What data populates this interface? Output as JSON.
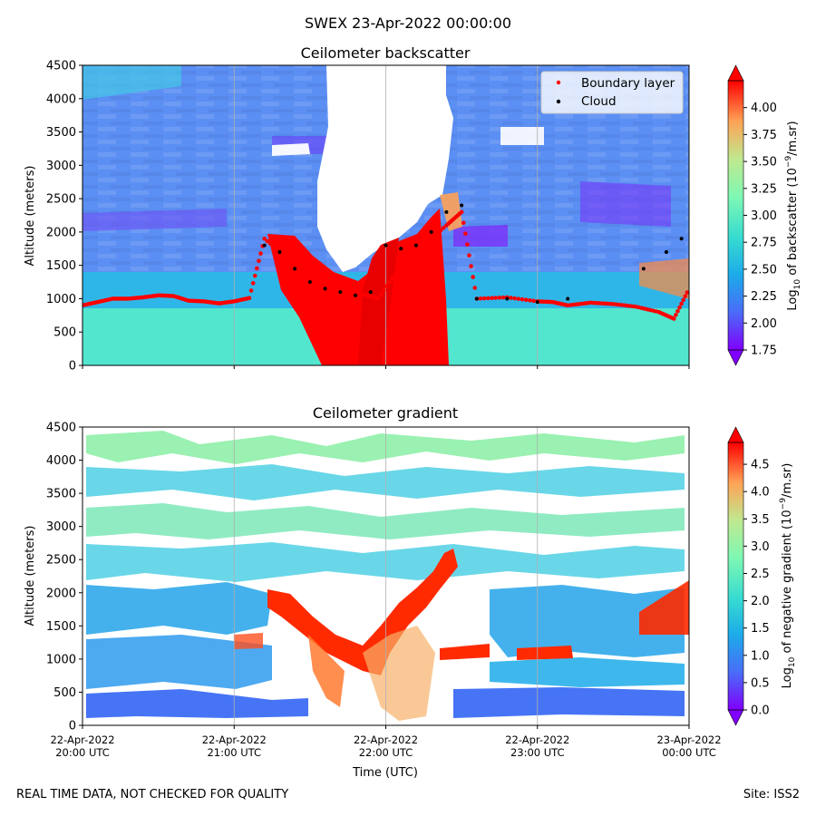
{
  "figure": {
    "suptitle": "SWEX 23-Apr-2022 00:00:00",
    "footer_left": "REAL TIME DATA, NOT CHECKED FOR QUALITY",
    "footer_right": "Site: ISS2"
  },
  "chart_data": [
    {
      "type": "heatmap",
      "title": "Ceilometer backscatter",
      "xlabel": "",
      "ylabel": "Altitude (meters)",
      "ylim": [
        0,
        4500
      ],
      "yticks": [
        0,
        500,
        1000,
        1500,
        2000,
        2500,
        3000,
        3500,
        4000,
        4500
      ],
      "xlim_hours": [
        0,
        4
      ],
      "xtick_labels": [
        "",
        "",
        "",
        "",
        ""
      ],
      "colorbar": {
        "label_prefix": "Log",
        "label_sub": "10",
        "label_suffix": " of backscatter (10",
        "label_sup": "−9",
        "label_end": "/m.sr)",
        "range": [
          1.75,
          4.25
        ],
        "ticks": [
          "1.75",
          "2.00",
          "2.25",
          "2.50",
          "2.75",
          "3.00",
          "3.25",
          "3.50",
          "3.75",
          "4.00"
        ],
        "extend": "both"
      },
      "legend": {
        "placement": "top-right",
        "entries": [
          {
            "label": "Boundary layer",
            "color": "#ff0000"
          },
          {
            "label": "Cloud",
            "color": "#000000"
          }
        ]
      },
      "boundary_layer": [
        [
          0.0,
          900
        ],
        [
          0.1,
          950
        ],
        [
          0.2,
          1000
        ],
        [
          0.3,
          1000
        ],
        [
          0.4,
          1020
        ],
        [
          0.5,
          1050
        ],
        [
          0.6,
          1040
        ],
        [
          0.7,
          970
        ],
        [
          0.8,
          960
        ],
        [
          0.9,
          930
        ],
        [
          1.0,
          960
        ],
        [
          1.1,
          1010
        ],
        [
          1.2,
          1900
        ],
        [
          1.35,
          1600
        ],
        [
          1.5,
          1400
        ],
        [
          1.65,
          1250
        ],
        [
          1.8,
          1100
        ],
        [
          1.95,
          1000
        ],
        [
          2.1,
          1500
        ],
        [
          2.25,
          1800
        ],
        [
          2.4,
          2100
        ],
        [
          2.5,
          2300
        ],
        [
          2.6,
          1000
        ],
        [
          2.8,
          1020
        ],
        [
          3.0,
          960
        ],
        [
          3.1,
          950
        ],
        [
          3.2,
          900
        ],
        [
          3.35,
          940
        ],
        [
          3.5,
          920
        ],
        [
          3.65,
          880
        ],
        [
          3.8,
          800
        ],
        [
          3.9,
          700
        ],
        [
          4.0,
          1150
        ]
      ],
      "cloud_base": [
        [
          1.2,
          1800
        ],
        [
          1.3,
          1700
        ],
        [
          1.4,
          1450
        ],
        [
          1.5,
          1250
        ],
        [
          1.6,
          1150
        ],
        [
          1.7,
          1100
        ],
        [
          1.8,
          1050
        ],
        [
          1.9,
          1100
        ],
        [
          2.0,
          1800
        ],
        [
          2.1,
          1750
        ],
        [
          2.2,
          1800
        ],
        [
          2.3,
          2000
        ],
        [
          2.4,
          2300
        ],
        [
          2.5,
          2400
        ],
        [
          2.6,
          1000
        ],
        [
          2.8,
          1000
        ],
        [
          3.0,
          950
        ],
        [
          3.2,
          1000
        ],
        [
          3.7,
          1450
        ],
        [
          3.85,
          1700
        ],
        [
          3.95,
          1900
        ]
      ]
    },
    {
      "type": "heatmap",
      "title": "Ceilometer gradient",
      "xlabel": "Time (UTC)",
      "ylabel": "Altitude (meters)",
      "ylim": [
        0,
        4500
      ],
      "yticks": [
        0,
        500,
        1000,
        1500,
        2000,
        2500,
        3000,
        3500,
        4000,
        4500
      ],
      "xlim_hours": [
        0,
        4
      ],
      "xtick_labels": [
        [
          "22-Apr-2022",
          "20:00 UTC"
        ],
        [
          "22-Apr-2022",
          "21:00 UTC"
        ],
        [
          "22-Apr-2022",
          "22:00 UTC"
        ],
        [
          "22-Apr-2022",
          "23:00 UTC"
        ],
        [
          "23-Apr-2022",
          "00:00 UTC"
        ]
      ],
      "colorbar": {
        "label_prefix": "Log",
        "label_sub": "10",
        "label_suffix": " of negative gradient (10",
        "label_sup": "−9",
        "label_end": "/m.sr)",
        "range": [
          0,
          4.9
        ],
        "ticks": [
          "0.0",
          "0.5",
          "1.0",
          "1.5",
          "2.0",
          "2.5",
          "3.0",
          "3.5",
          "4.0",
          "4.5"
        ],
        "extend": "both"
      }
    }
  ]
}
